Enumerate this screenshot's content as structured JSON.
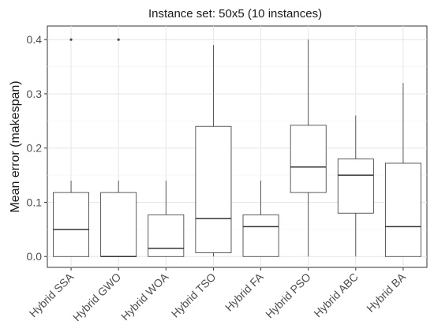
{
  "chart_data": {
    "type": "boxplot",
    "title": "Instance set: 50x5 (10 instances)",
    "xlabel": "",
    "ylabel": "Mean error (makespan)",
    "ylim": [
      -0.02,
      0.425
    ],
    "yticks": [
      "0.0",
      "0.1",
      "0.2",
      "0.3",
      "0.4"
    ],
    "ytick_values": [
      0.0,
      0.1,
      0.2,
      0.3,
      0.4
    ],
    "grid": true,
    "categories": [
      "Hybrid SSA",
      "Hybrid GWO",
      "Hybrid WOA",
      "Hybrid TSO",
      "Hybrid FA",
      "Hybrid PSO",
      "Hybrid ABC",
      "Hybrid BA"
    ],
    "boxes": [
      {
        "min": 0.0,
        "q1": 0.0,
        "median": 0.05,
        "q3": 0.118,
        "max": 0.14,
        "outliers": [
          0.4
        ]
      },
      {
        "min": 0.0,
        "q1": 0.0,
        "median": 0.0,
        "q3": 0.118,
        "max": 0.14,
        "outliers": [
          0.4
        ]
      },
      {
        "min": 0.0,
        "q1": 0.0,
        "median": 0.015,
        "q3": 0.077,
        "max": 0.14,
        "outliers": []
      },
      {
        "min": 0.0,
        "q1": 0.007,
        "median": 0.07,
        "q3": 0.24,
        "max": 0.39,
        "outliers": []
      },
      {
        "min": 0.0,
        "q1": 0.0,
        "median": 0.055,
        "q3": 0.077,
        "max": 0.14,
        "outliers": []
      },
      {
        "min": 0.0,
        "q1": 0.118,
        "median": 0.165,
        "q3": 0.242,
        "max": 0.4,
        "outliers": []
      },
      {
        "min": 0.0,
        "q1": 0.08,
        "median": 0.15,
        "q3": 0.18,
        "max": 0.26,
        "outliers": []
      },
      {
        "min": 0.0,
        "q1": 0.0,
        "median": 0.055,
        "q3": 0.172,
        "max": 0.32,
        "outliers": []
      }
    ]
  }
}
